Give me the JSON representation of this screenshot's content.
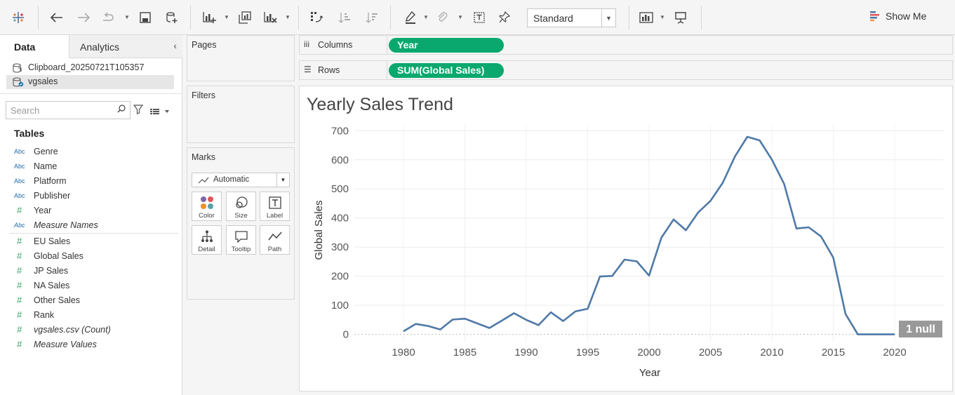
{
  "toolbar": {
    "mark_size_select": "Standard",
    "show_me_label": "Show Me",
    "icons": [
      "tableau-logo-icon",
      "undo-icon",
      "redo-icon",
      "replay-icon",
      "save-icon",
      "new-datasource-icon",
      "new-worksheet-icon",
      "duplicate-sheet-icon",
      "clear-sheet-icon",
      "swap-axes-icon",
      "sort-ascending-icon",
      "sort-descending-icon",
      "highlight-icon",
      "group-icon",
      "show-labels-icon",
      "pin-icon",
      "chart-type-icon",
      "presentation-icon"
    ]
  },
  "left_pane": {
    "tab_data": "Data",
    "tab_analytics": "Analytics",
    "datasources": [
      "Clipboard_20250721T105357",
      "vgsales"
    ],
    "search_placeholder": "Search",
    "tables_heading": "Tables",
    "dimensions": [
      {
        "type": "Abc",
        "name": "Genre"
      },
      {
        "type": "Abc",
        "name": "Name"
      },
      {
        "type": "Abc",
        "name": "Platform"
      },
      {
        "type": "Abc",
        "name": "Publisher"
      },
      {
        "type": "#",
        "name": "Year"
      },
      {
        "type": "Abc",
        "name": "Measure Names"
      }
    ],
    "measures": [
      {
        "type": "#",
        "name": "EU Sales"
      },
      {
        "type": "#",
        "name": "Global Sales"
      },
      {
        "type": "#",
        "name": "JP Sales"
      },
      {
        "type": "#",
        "name": "NA Sales"
      },
      {
        "type": "#",
        "name": "Other Sales"
      },
      {
        "type": "#",
        "name": "Rank"
      },
      {
        "type": "#",
        "name": "vgsales.csv (Count)"
      },
      {
        "type": "#",
        "name": "Measure Values"
      }
    ]
  },
  "cards": {
    "pages": "Pages",
    "filters": "Filters",
    "marks": "Marks",
    "mark_type": "Automatic",
    "mark_buttons": [
      "Color",
      "Size",
      "Label",
      "Detail",
      "Tooltip",
      "Path"
    ]
  },
  "shelves": {
    "columns_label": "Columns",
    "columns_pill": "Year",
    "rows_label": "Rows",
    "rows_pill": "SUM(Global Sales)"
  },
  "viz": {
    "title": "Yearly Sales Trend",
    "null_badge": "1 null"
  },
  "colors": {
    "line": "#4e79a7",
    "pill": "#0aa86e"
  },
  "chart_data": {
    "type": "line",
    "title": "Yearly Sales Trend",
    "xlabel": "Year",
    "ylabel": "Global Sales",
    "xlim": [
      1976,
      2024
    ],
    "ylim": [
      -25,
      720
    ],
    "xticks": [
      1980,
      1985,
      1990,
      1995,
      2000,
      2005,
      2010,
      2015,
      2020
    ],
    "yticks": [
      0,
      100,
      200,
      300,
      400,
      500,
      600,
      700
    ],
    "grid": true,
    "series": [
      {
        "x": [
          1980,
          1981,
          1982,
          1983,
          1984,
          1985,
          1986,
          1987,
          1988,
          1989,
          1990,
          1991,
          1992,
          1993,
          1994,
          1995,
          1996,
          1997,
          1998,
          1999,
          2000,
          2001,
          2002,
          2003,
          2004,
          2005,
          2006,
          2007,
          2008,
          2009,
          2010,
          2011,
          2012,
          2013,
          2014,
          2015,
          2016,
          2017,
          2020
        ],
        "y": [
          11,
          36,
          29,
          17,
          51,
          54,
          38,
          22,
          47,
          73,
          50,
          32,
          76,
          46,
          79,
          88,
          199,
          201,
          257,
          251,
          202,
          332,
          395,
          358,
          419,
          459,
          521,
          612,
          679,
          667,
          601,
          517,
          364,
          368,
          337,
          264,
          70,
          0,
          0
        ]
      }
    ]
  }
}
